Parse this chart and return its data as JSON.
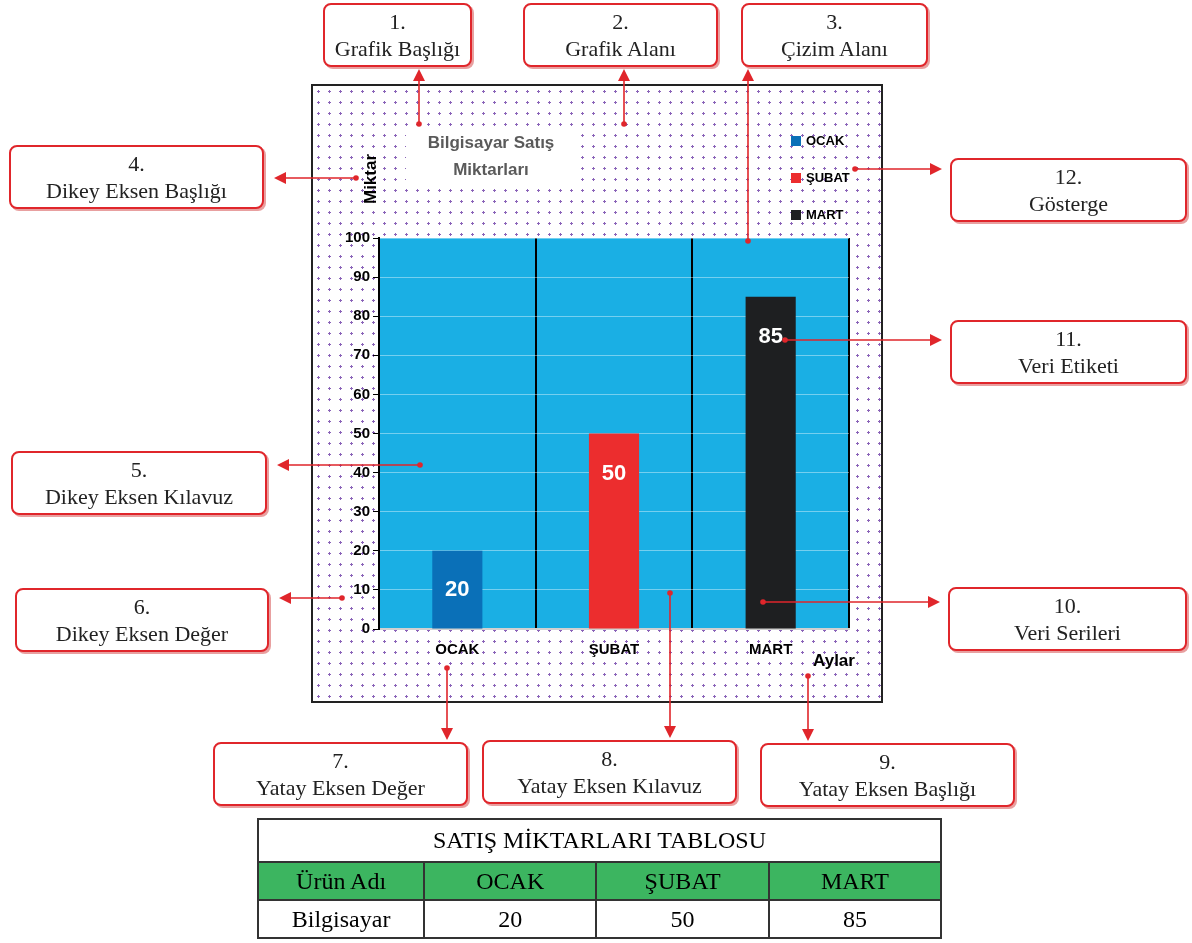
{
  "chart_data": {
    "type": "bar",
    "title": "Bilgisayar Satış Miktarları",
    "xlabel": "Aylar",
    "ylabel": "Miktar",
    "categories": [
      "OCAK",
      "ŞUBAT",
      "MART"
    ],
    "series": [
      {
        "name": "OCAK",
        "color": "#0a70b8",
        "values": [
          20,
          null,
          null
        ]
      },
      {
        "name": "ŞUBAT",
        "color": "#ec2d2e",
        "values": [
          null,
          50,
          null
        ]
      },
      {
        "name": "MART",
        "color": "#1e1f21",
        "values": [
          null,
          null,
          85
        ]
      }
    ],
    "ylim": [
      0,
      100
    ],
    "yticks": [
      0,
      10,
      20,
      30,
      40,
      50,
      60,
      70,
      80,
      90,
      100
    ],
    "grid": true,
    "legend": "top right",
    "data_labels": true,
    "annotations": [
      "1.\nGrafik Başlığı",
      "2.\nGrafik Alanı",
      "3.\nÇizim Alanı",
      "4.\nDikey Eksen Başlığı",
      "5.\nDikey Eksen Kılavuz",
      "6.\nDikey Eksen Değer",
      "7.\nYatay Eksen Değer",
      "8.\nYatay Eksen Kılavuz",
      "9.\nYatay Eksen Başlığı",
      "10.\nVeri Serileri",
      "11.\nVeri Etiketi",
      "12.\nGösterge",
      "SATIŞ MİKTARLARI TABLOSU",
      "Ürün Adı",
      "Bilgisayar",
      "20",
      "50",
      "85"
    ]
  }
}
